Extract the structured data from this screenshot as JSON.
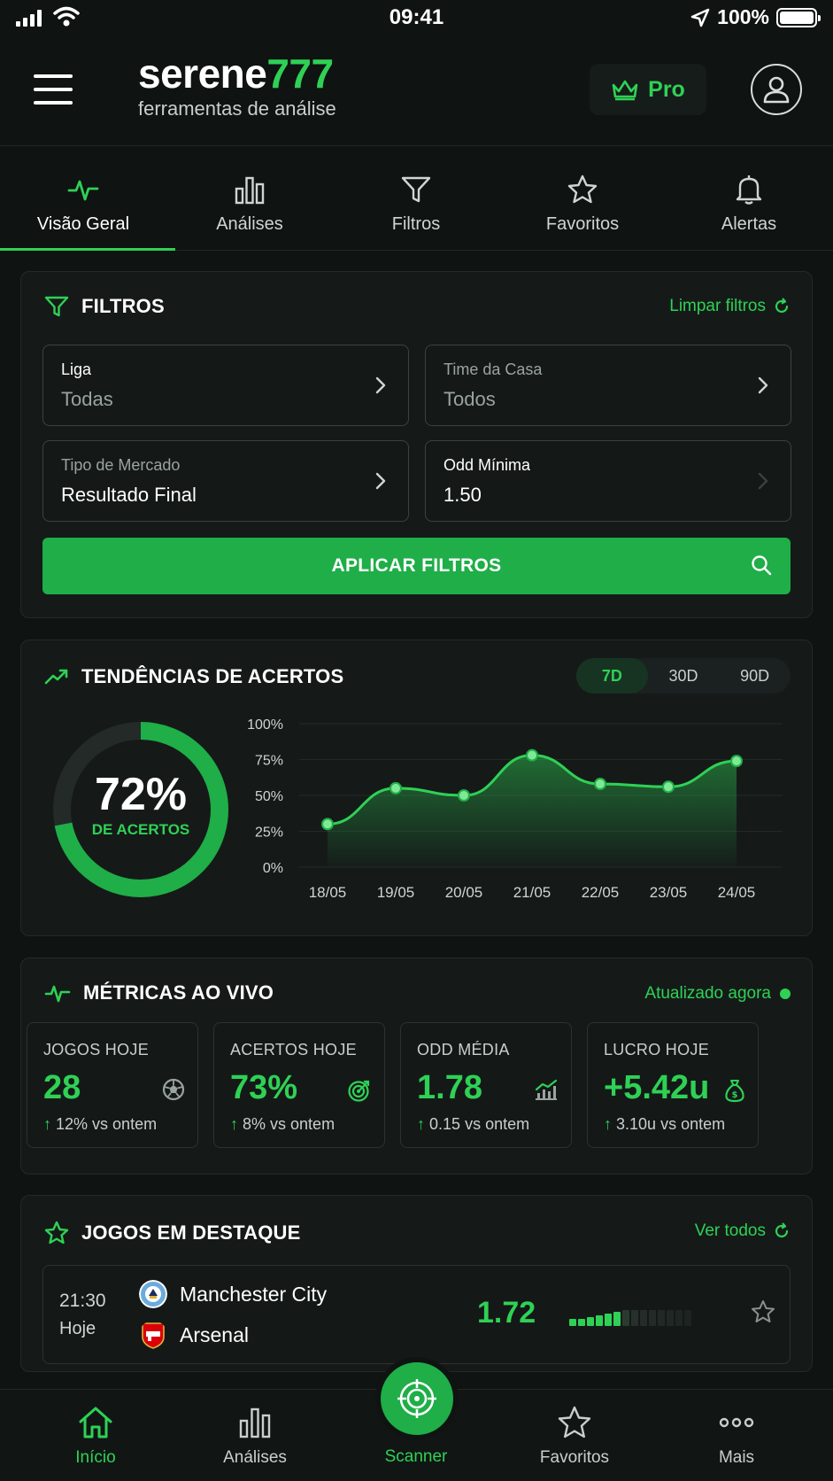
{
  "status_bar": {
    "time": "09:41",
    "battery": "100%"
  },
  "header": {
    "brand_main": "serene",
    "brand_accent": "777",
    "tagline": "ferramentas de análise",
    "pro_label": "Pro"
  },
  "tabs": [
    {
      "label": "Visão Geral",
      "icon": "pulse-icon",
      "active": true
    },
    {
      "label": "Análises",
      "icon": "bar-chart-icon"
    },
    {
      "label": "Filtros",
      "icon": "filter-icon"
    },
    {
      "label": "Favoritos",
      "icon": "star-icon"
    },
    {
      "label": "Alertas",
      "icon": "bell-icon"
    }
  ],
  "filters": {
    "title": "FILTROS",
    "clear_label": "Limpar filtros",
    "fields": [
      {
        "label": "Liga",
        "value": "Todas"
      },
      {
        "label": "Time da Casa",
        "value": "Todos"
      },
      {
        "label": "Tipo de Mercado",
        "value": "Resultado Final"
      },
      {
        "label": "Odd Mínima",
        "value": "1.50"
      }
    ],
    "apply_label": "APLICAR FILTROS"
  },
  "trends": {
    "title": "TENDÊNCIAS DE ACERTOS",
    "periods": [
      "7D",
      "30D",
      "90D"
    ],
    "selected_period": "7D",
    "hit_rate_value": "72%",
    "hit_rate_fraction": 0.72,
    "hit_rate_label": "DE ACERTOS"
  },
  "chart_data": {
    "type": "area",
    "categories": [
      "18/05",
      "19/05",
      "20/05",
      "21/05",
      "22/05",
      "23/05",
      "24/05"
    ],
    "values": [
      30,
      55,
      50,
      78,
      58,
      56,
      74
    ],
    "yticks": [
      "100%",
      "75%",
      "50%",
      "25%",
      "0%"
    ],
    "ylim": [
      0,
      100
    ],
    "grid": true,
    "color": "#2fd155"
  },
  "metrics": {
    "title": "MÉTRICAS AO VIVO",
    "updated_label": "Atualizado agora",
    "items": [
      {
        "label": "JOGOS HOJE",
        "value": "28",
        "delta": "12%",
        "delta_suffix": " vs ontem",
        "icon": "soccer-ball-icon"
      },
      {
        "label": "ACERTOS HOJE",
        "value": "73%",
        "delta": "8%",
        "delta_suffix": " vs ontem",
        "icon": "target-icon"
      },
      {
        "label": "ODD MÉDIA",
        "value": "1.78",
        "delta": "0.15",
        "delta_suffix": " vs ontem",
        "icon": "trend-chart-icon"
      },
      {
        "label": "LUCRO HOJE",
        "value": "+5.42u",
        "delta": "3.10u",
        "delta_suffix": " vs ontem",
        "icon": "money-bag-icon"
      }
    ]
  },
  "featured": {
    "title": "JOGOS EM DESTAQUE",
    "see_all_label": "Ver todos",
    "game": {
      "time": "21:30",
      "day": "Hoje",
      "home": "Manchester City",
      "away": "Arsenal",
      "odd": "1.72"
    }
  },
  "bottom_nav": [
    {
      "label": "Início",
      "icon": "home-icon",
      "active": true
    },
    {
      "label": "Análises",
      "icon": "bar-chart-icon"
    },
    {
      "label": "Scanner",
      "icon": "scanner-icon"
    },
    {
      "label": "Favoritos",
      "icon": "star-icon"
    },
    {
      "label": "Mais",
      "icon": "more-dots-icon"
    }
  ],
  "colors": {
    "accent": "#2fd155",
    "accent_dark": "#1fae47",
    "background": "#0f1312",
    "card": "#151a19"
  }
}
